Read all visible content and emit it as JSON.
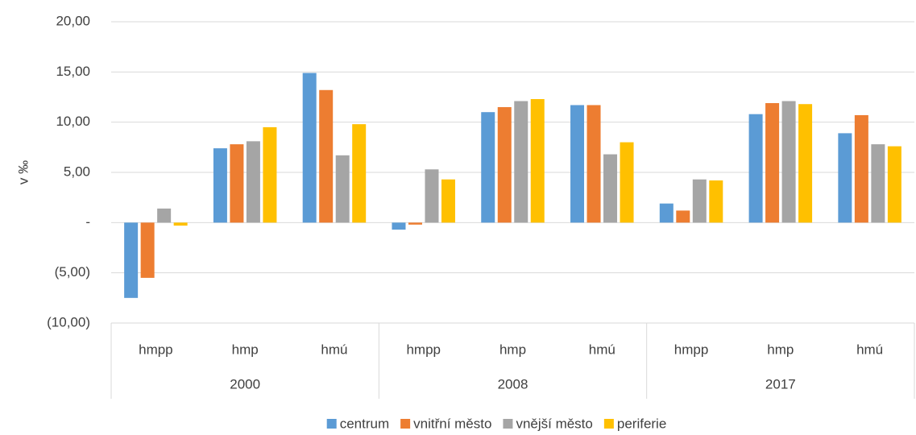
{
  "chart_data": {
    "type": "bar",
    "y_label": "v ‰",
    "categories": [
      "hmpp",
      "hmp",
      "hmú",
      "hmpp",
      "hmp",
      "hmú",
      "hmpp",
      "hmp",
      "hmú"
    ],
    "category_groups": [
      "2000",
      "2008",
      "2017"
    ],
    "series": [
      {
        "name": "centrum",
        "color": "#5b9bd5",
        "values": [
          -7.5,
          7.4,
          14.9,
          -0.7,
          11.0,
          11.7,
          1.9,
          10.8,
          8.9
        ]
      },
      {
        "name": "vnitřní město",
        "color": "#ed7d31",
        "values": [
          -5.5,
          7.8,
          13.2,
          -0.2,
          11.5,
          11.7,
          1.2,
          11.9,
          10.7
        ]
      },
      {
        "name": "vnější město",
        "color": "#a5a5a5",
        "values": [
          1.4,
          8.1,
          6.7,
          5.3,
          12.1,
          6.8,
          4.3,
          12.1,
          7.8
        ]
      },
      {
        "name": "periferie",
        "color": "#ffc000",
        "values": [
          -0.3,
          9.5,
          9.8,
          4.3,
          12.3,
          8.0,
          4.2,
          11.8,
          7.6
        ]
      }
    ],
    "ylim": [
      -10,
      20
    ],
    "yticks": [
      {
        "value": -10,
        "label": "(10,00)"
      },
      {
        "value": -5,
        "label": "(5,00)"
      },
      {
        "value": 0,
        "label": "-"
      },
      {
        "value": 5,
        "label": "5,00"
      },
      {
        "value": 10,
        "label": "10,00"
      },
      {
        "value": 15,
        "label": "15,00"
      },
      {
        "value": 20,
        "label": "20,00"
      }
    ],
    "grid": true,
    "legend": "bottom"
  }
}
